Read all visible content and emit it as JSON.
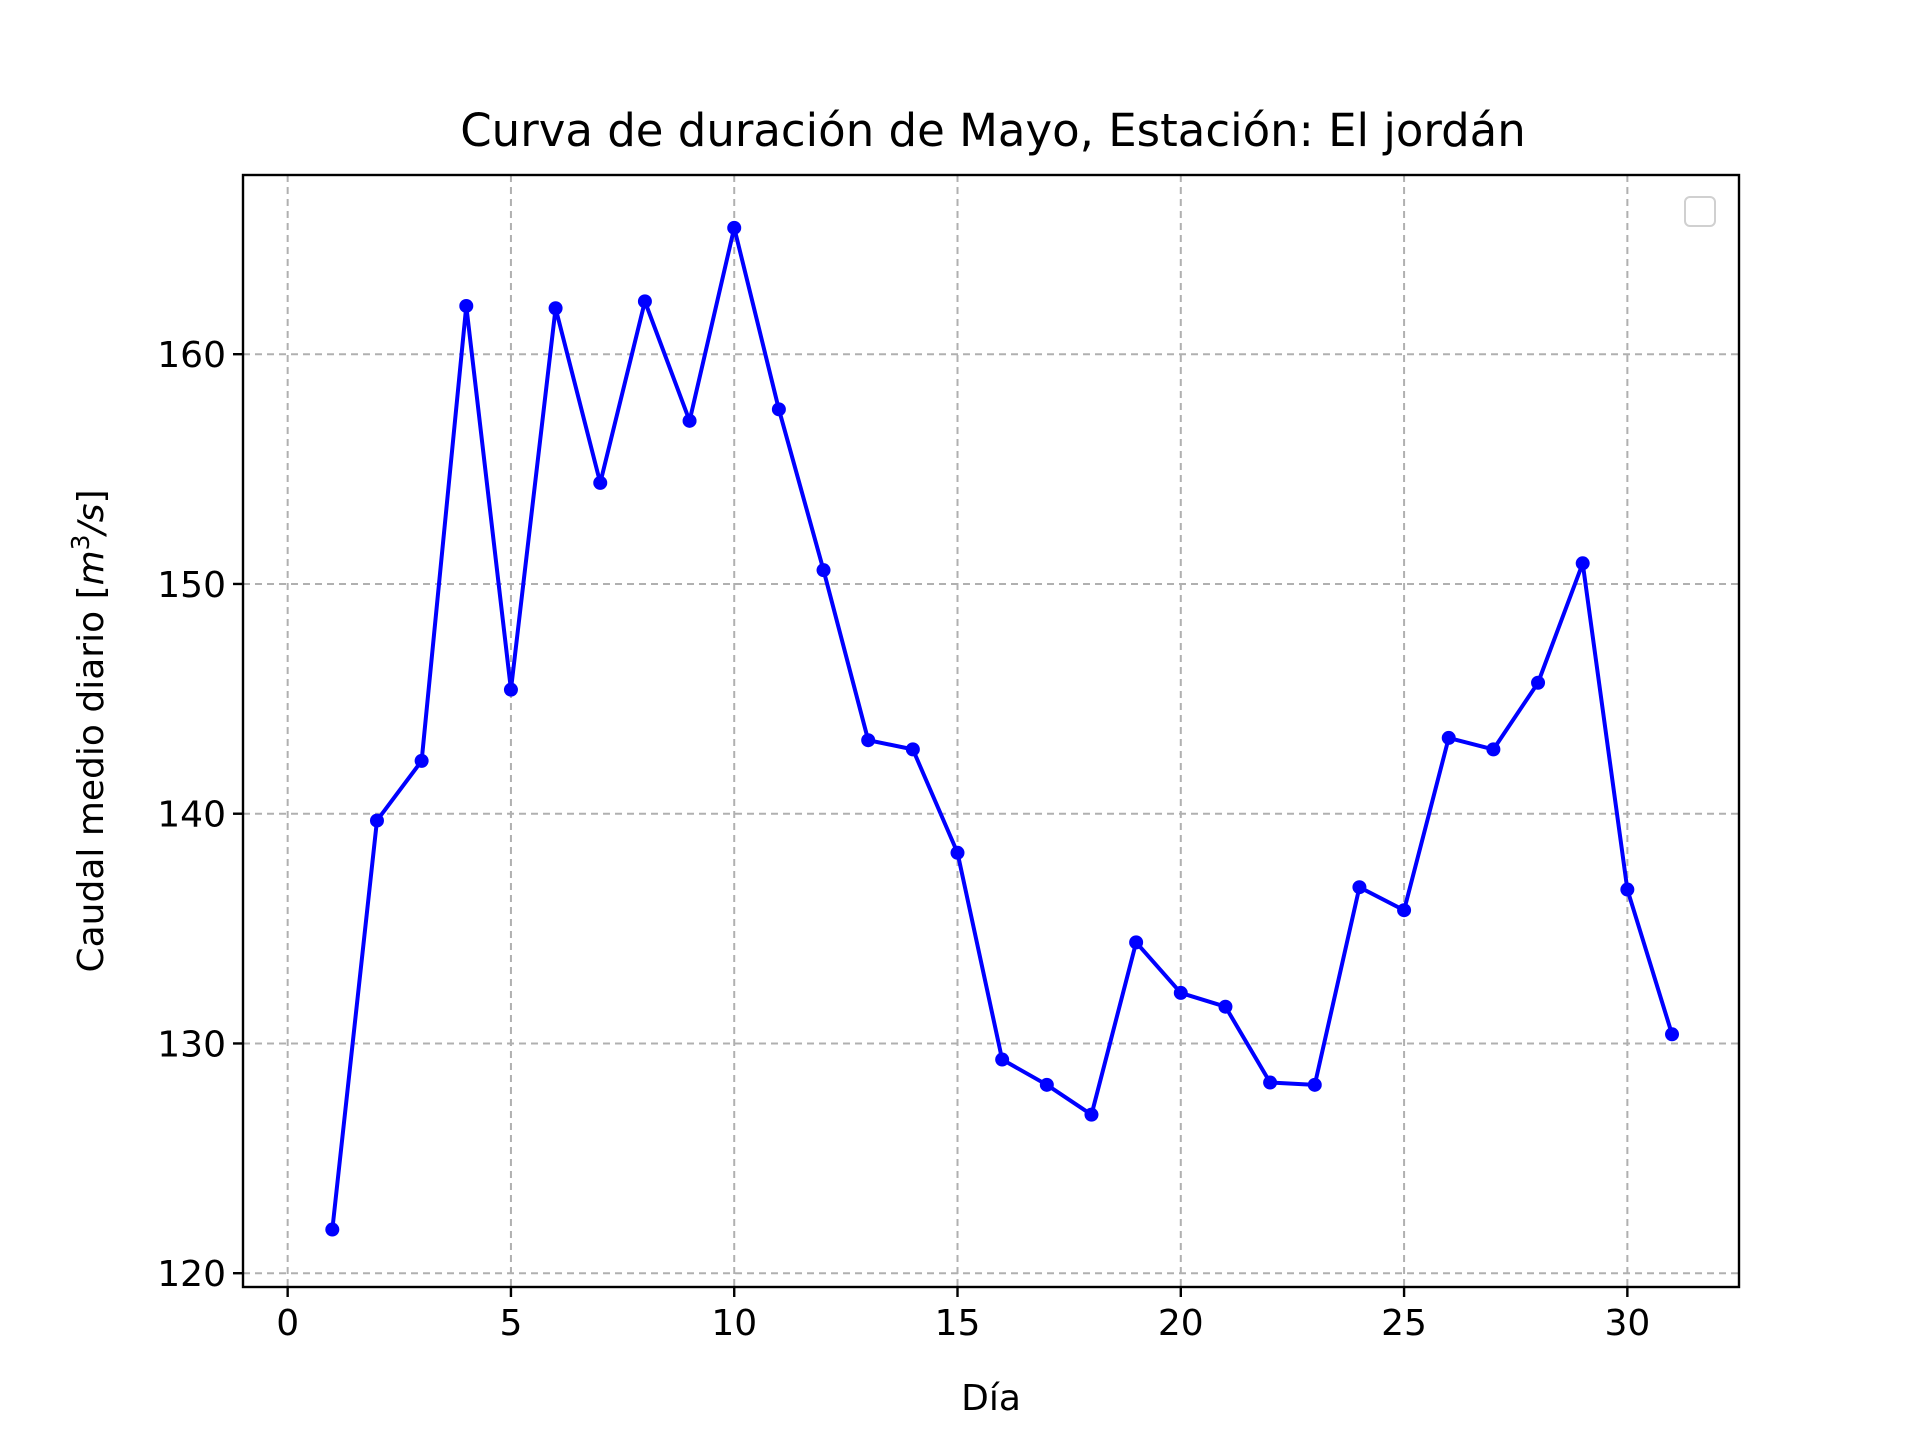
{
  "chart_data": {
    "type": "line",
    "title": "Curva de duración de Mayo, Estación: El jordán",
    "xlabel": "Día",
    "ylabel_text": "Caudal medio diario [",
    "ylabel_unit": "m",
    "ylabel_exp": "3",
    "ylabel_tail": "/s",
    "ylabel_close": "]",
    "xlim": [
      -1,
      32.5
    ],
    "ylim": [
      119.4,
      167.8
    ],
    "xticks": [
      0,
      5,
      10,
      15,
      20,
      25,
      30
    ],
    "yticks": [
      120,
      130,
      140,
      150,
      160
    ],
    "grid": true,
    "legend": "upper right (empty)",
    "series": [
      {
        "color": "#0000ff",
        "marker": "circle",
        "x": [
          1,
          2,
          3,
          4,
          5,
          6,
          7,
          8,
          9,
          10,
          11,
          12,
          13,
          14,
          15,
          16,
          17,
          18,
          19,
          20,
          21,
          22,
          23,
          24,
          25,
          26,
          27,
          28,
          29,
          30,
          31
        ],
        "y": [
          121.9,
          139.7,
          142.3,
          162.1,
          145.4,
          162.0,
          154.4,
          162.3,
          157.1,
          165.5,
          157.6,
          150.6,
          143.2,
          142.8,
          138.3,
          129.3,
          128.2,
          126.9,
          134.4,
          132.2,
          131.6,
          128.3,
          128.2,
          136.8,
          135.8,
          143.3,
          142.8,
          145.7,
          150.9,
          136.7,
          130.4
        ]
      }
    ]
  }
}
